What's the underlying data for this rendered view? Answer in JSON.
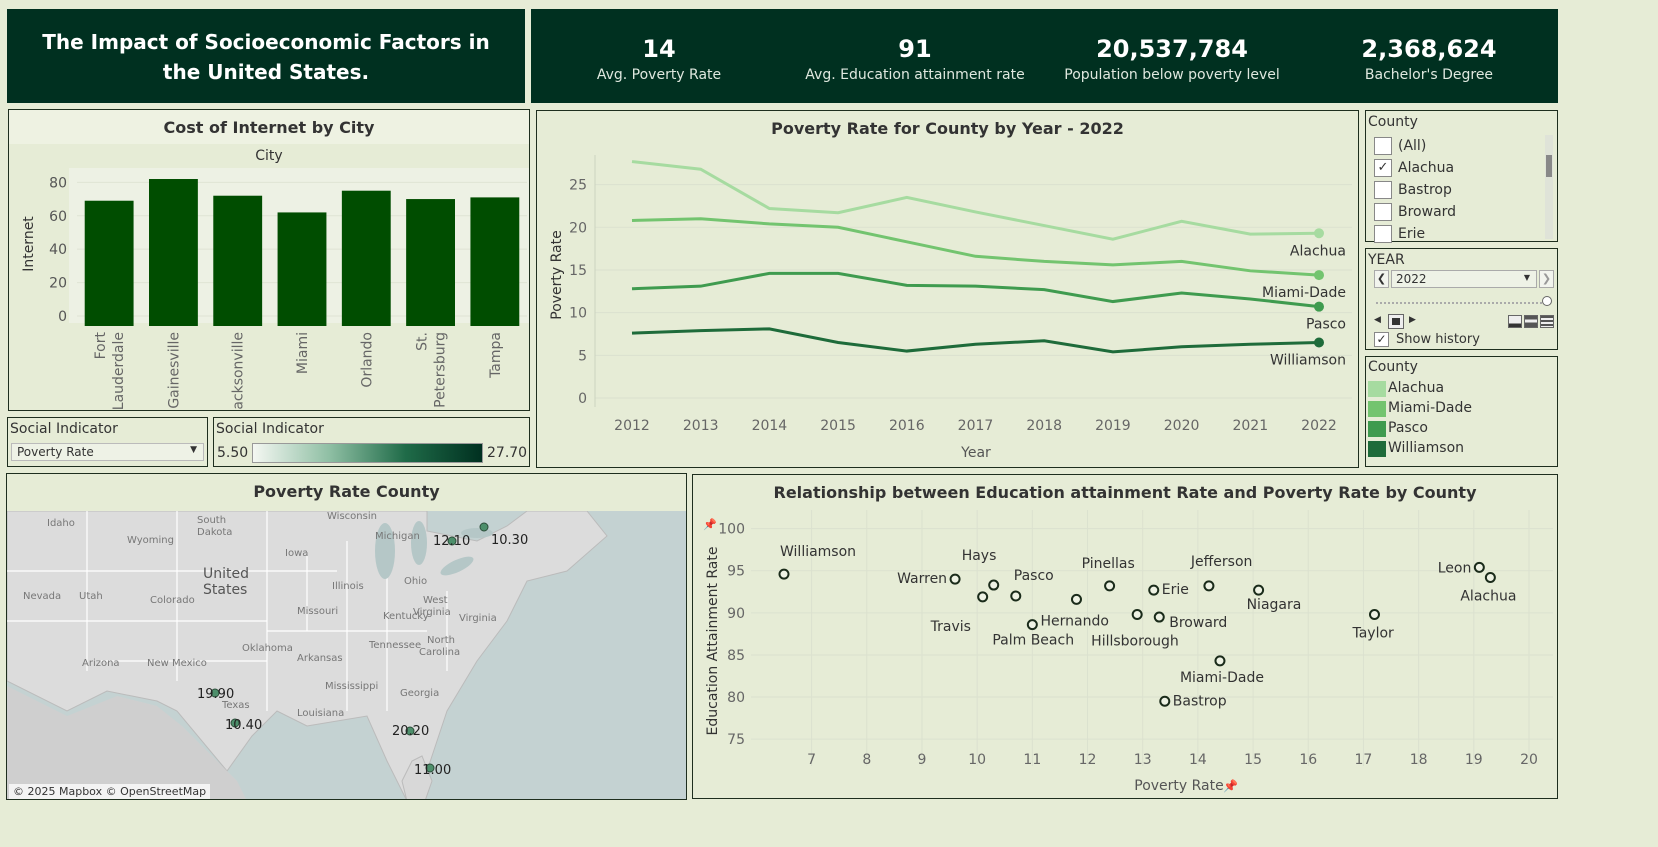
{
  "header": {
    "title": "The Impact of Socioeconomic Factors in the United States."
  },
  "kpis": [
    {
      "value": "14",
      "label": "Avg. Poverty Rate"
    },
    {
      "value": "91",
      "label": "Avg. Education attainment rate"
    },
    {
      "value": "20,537,784",
      "label": "Population below poverty level"
    },
    {
      "value": "2,368,624",
      "label": "Bachelor's Degree"
    }
  ],
  "colors": {
    "dark_green": "#003020",
    "bar_green": "#004d00",
    "alachua": "#a6dba0",
    "miami_dade": "#73c46f",
    "pasco": "#3f9b4f",
    "williamson": "#1e6b3a"
  },
  "internet": {
    "title": "Cost of Internet by City",
    "header": "City",
    "ylabel": "Internet"
  },
  "poverty_line": {
    "title": "Poverty Rate for County by Year - 2022",
    "ylabel": "Poverty Rate",
    "xlabel": "Year"
  },
  "scatter": {
    "title": "Relationship between Education attainment Rate and Poverty Rate by County",
    "xlabel": "Poverty Rate",
    "ylabel": "Education Attainment Rate"
  },
  "map": {
    "title": "Poverty Rate County",
    "attribution": "© 2025 Mapbox © OpenStreetMap",
    "region_labels": [
      "Idaho",
      "South Dakota",
      "Wisconsin",
      "Michigan",
      "Wyoming",
      "Iowa",
      "United States",
      "Illinois",
      "Ohio",
      "Nevada",
      "Utah",
      "Colorado",
      "Missouri",
      "West Virginia",
      "Virginia",
      "Kentucky",
      "North Carolina",
      "Tennessee",
      "Arizona",
      "New Mexico",
      "Oklahoma",
      "Arkansas",
      "Mississippi",
      "Georgia",
      "Texas",
      "Louisiana"
    ],
    "markers": [
      {
        "label": "12.10"
      },
      {
        "label": "10.30"
      },
      {
        "label": "19.90"
      },
      {
        "label": "10.40"
      },
      {
        "label": "20.20"
      },
      {
        "label": "11.00"
      }
    ]
  },
  "filters": {
    "social_indicator_label": "Social Indicator",
    "social_indicator_value": "Poverty Rate",
    "legend_title": "Social Indicator",
    "legend_min": "5.50",
    "legend_max": "27.70",
    "county_title": "County",
    "county_options": [
      {
        "label": "(All)",
        "checked": false
      },
      {
        "label": "Alachua",
        "checked": true
      },
      {
        "label": "Bastrop",
        "checked": false
      },
      {
        "label": "Broward",
        "checked": false
      },
      {
        "label": "Erie",
        "checked": false
      }
    ],
    "year_title": "YEAR",
    "year_value": "2022",
    "show_history_label": "Show history",
    "county_legend_title": "County",
    "county_legend": [
      "Alachua",
      "Miami-Dade",
      "Pasco",
      "Williamson"
    ]
  },
  "chart_data": [
    {
      "type": "bar",
      "title": "Cost of Internet by City",
      "xlabel": "City",
      "ylabel": "Internet",
      "categories": [
        "Fort Lauderdale",
        "Gainesville",
        "Jacksonville",
        "Miami",
        "Orlando",
        "St. Petersburg",
        "Tampa"
      ],
      "values": [
        69,
        82,
        72,
        62,
        75,
        70,
        71
      ],
      "yticks": [
        0,
        20,
        40,
        60,
        80
      ],
      "ylim": [
        0,
        85
      ]
    },
    {
      "type": "line",
      "title": "Poverty Rate for County by Year - 2022",
      "xlabel": "Year",
      "ylabel": "Poverty Rate",
      "x": [
        2012,
        2013,
        2014,
        2015,
        2016,
        2017,
        2018,
        2019,
        2020,
        2021,
        2022
      ],
      "yticks": [
        0,
        5,
        10,
        15,
        20,
        25
      ],
      "ylim": [
        0,
        28
      ],
      "series": [
        {
          "name": "Alachua",
          "values": [
            27.7,
            26.8,
            22.2,
            21.7,
            23.5,
            21.8,
            20.2,
            18.6,
            20.7,
            19.2,
            19.3
          ]
        },
        {
          "name": "Miami-Dade",
          "values": [
            20.8,
            21.0,
            20.4,
            20.0,
            18.3,
            16.6,
            16.0,
            15.6,
            16.0,
            14.9,
            14.4
          ]
        },
        {
          "name": "Pasco",
          "values": [
            12.8,
            13.1,
            14.6,
            14.6,
            13.2,
            13.1,
            12.7,
            11.3,
            12.3,
            11.6,
            10.7
          ]
        },
        {
          "name": "Williamson",
          "values": [
            7.6,
            7.9,
            8.1,
            6.5,
            5.5,
            6.3,
            6.7,
            5.4,
            6.0,
            6.3,
            6.5
          ]
        }
      ]
    },
    {
      "type": "scatter",
      "title": "Relationship between Education attainment Rate and Poverty Rate by County",
      "xlabel": "Poverty Rate",
      "ylabel": "Education Attainment Rate",
      "xticks": [
        7,
        8,
        9,
        10,
        11,
        12,
        13,
        14,
        15,
        16,
        17,
        18,
        19,
        20
      ],
      "yticks": [
        75,
        80,
        85,
        90,
        95,
        100
      ],
      "xlim": [
        6.3,
        20.3
      ],
      "ylim": [
        73,
        101.5
      ],
      "points": [
        {
          "label": "Williamson",
          "x": 6.5,
          "y": 94.6
        },
        {
          "label": "Warren",
          "x": 9.6,
          "y": 94.0
        },
        {
          "label": "Hays",
          "x": 10.3,
          "y": 93.3
        },
        {
          "label": "Travis",
          "x": 10.1,
          "y": 91.9
        },
        {
          "label": "Pasco",
          "x": 10.7,
          "y": 92.0
        },
        {
          "label": "Palm Beach",
          "x": 11.0,
          "y": 88.6
        },
        {
          "label": "Hernando",
          "x": 11.8,
          "y": 91.6
        },
        {
          "label": "Pinellas",
          "x": 12.4,
          "y": 93.2
        },
        {
          "label": "Hillsborough",
          "x": 12.9,
          "y": 89.8
        },
        {
          "label": "Erie",
          "x": 13.2,
          "y": 92.7
        },
        {
          "label": "Broward",
          "x": 13.3,
          "y": 89.5
        },
        {
          "label": "Jefferson",
          "x": 14.2,
          "y": 93.2
        },
        {
          "label": "Niagara",
          "x": 15.1,
          "y": 92.7
        },
        {
          "label": "Miami-Dade",
          "x": 14.4,
          "y": 84.3
        },
        {
          "label": "Bastrop",
          "x": 13.4,
          "y": 79.5
        },
        {
          "label": "Taylor",
          "x": 17.2,
          "y": 89.8
        },
        {
          "label": "Leon",
          "x": 19.1,
          "y": 95.4
        },
        {
          "label": "Alachua",
          "x": 19.3,
          "y": 94.2
        }
      ]
    }
  ]
}
